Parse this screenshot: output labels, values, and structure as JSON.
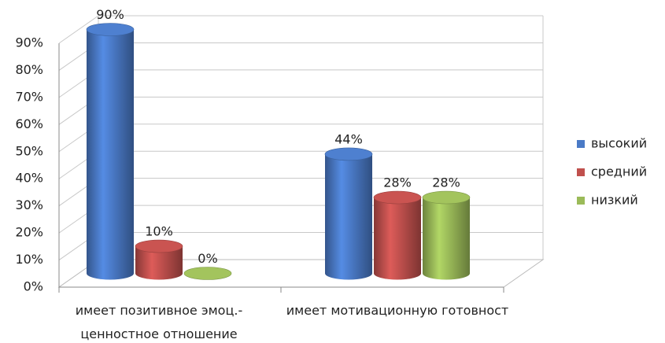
{
  "chart_data": {
    "type": "bar3d",
    "categories": [
      "имеет позитивное эмоц.-ценностное отношение",
      "имеет мотивационную готовност"
    ],
    "series": [
      {
        "name": "высокий",
        "color": "#4a7ac6",
        "values": [
          90,
          44
        ],
        "value_labels": [
          "90%",
          "44%"
        ]
      },
      {
        "name": "средний",
        "color": "#c0504d",
        "values": [
          10,
          28
        ],
        "value_labels": [
          "10%",
          "28%"
        ]
      },
      {
        "name": "низкий",
        "color": "#9bbb59",
        "values": [
          0,
          28
        ],
        "value_labels": [
          "0%",
          "28%"
        ]
      }
    ],
    "ylim": [
      0,
      90
    ],
    "yticks": [
      {
        "value": 0,
        "label": "0%"
      },
      {
        "value": 10,
        "label": "10%"
      },
      {
        "value": 20,
        "label": "20%"
      },
      {
        "value": 30,
        "label": "30%"
      },
      {
        "value": 40,
        "label": "40%"
      },
      {
        "value": 50,
        "label": "50%"
      },
      {
        "value": 60,
        "label": "60%"
      },
      {
        "value": 70,
        "label": "70%"
      },
      {
        "value": 80,
        "label": "80%"
      },
      {
        "value": 90,
        "label": "90%"
      }
    ],
    "grid": true,
    "legend": "right"
  }
}
